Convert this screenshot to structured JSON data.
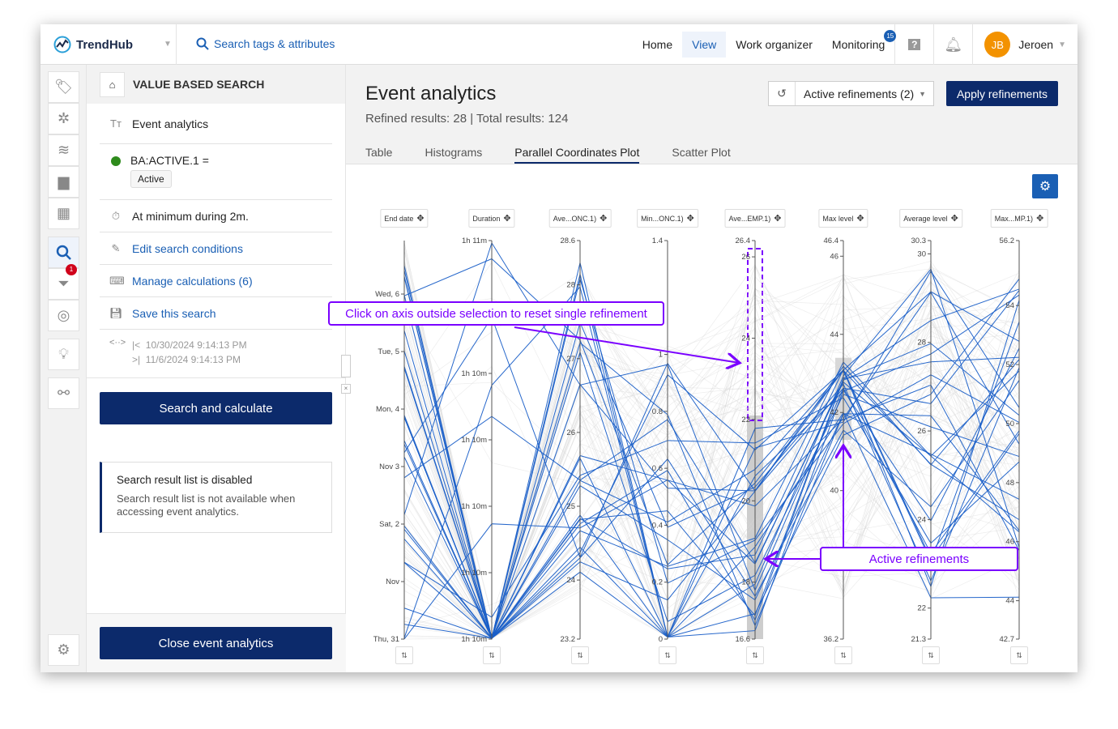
{
  "topbar": {
    "brand": "TrendHub",
    "search_placeholder": "Search tags & attributes",
    "nav": [
      {
        "label": "Home"
      },
      {
        "label": "View"
      },
      {
        "label": "Work organizer"
      },
      {
        "label": "Monitoring",
        "badge": "15"
      }
    ],
    "user_initials": "JB",
    "user_name": "Jeroen"
  },
  "rail": {
    "filter_badge": "1"
  },
  "panel": {
    "title": "VALUE BASED SEARCH",
    "name": "Event analytics",
    "condition": "BA:ACTIVE.1 =",
    "condition_value": "Active",
    "duration": "At minimum during 2m.",
    "edit": "Edit search conditions",
    "calculations": "Manage calculations (6)",
    "save": "Save this search",
    "date_start": "10/30/2024 9:14:13 PM",
    "date_end": "11/6/2024 9:14:13 PM",
    "search_button": "Search and calculate",
    "notice_title": "Search result list is disabled",
    "notice_text": "Search result list is not available when accessing event analytics.",
    "close_button": "Close event analytics"
  },
  "main": {
    "title": "Event analytics",
    "subtitle": "Refined results: 28 | Total results: 124",
    "refinements": "Active refinements (2)",
    "apply": "Apply refinements",
    "tabs": [
      "Table",
      "Histograms",
      "Parallel Coordinates Plot",
      "Scatter Plot"
    ],
    "active_tab": 2
  },
  "callouts": {
    "reset": "Click on axis outside selection to reset single refinement",
    "active": "Active refinements"
  },
  "colors": {
    "highlight": "#1a5fc8",
    "background_lines": "#d8d8d8",
    "brush": "#c8c8c8",
    "annotation": "#7a00ff",
    "primary": "#0c2a6b"
  },
  "chart_data": {
    "type": "parallel-coordinates",
    "total_lines": 124,
    "highlighted_lines": 28,
    "axes": [
      {
        "label": "End date",
        "min": 0,
        "max": 6.93,
        "ticks": [
          {
            "v": 0,
            "t": "Thu, 31"
          },
          {
            "v": 1,
            "t": "Nov"
          },
          {
            "v": 2,
            "t": "Sat, 2"
          },
          {
            "v": 3,
            "t": "Nov 3"
          },
          {
            "v": 4,
            "t": "Mon, 4"
          },
          {
            "v": 5,
            "t": "Tue, 5"
          },
          {
            "v": 6,
            "t": "Wed, 6"
          }
        ]
      },
      {
        "label": "Duration",
        "min": 4200,
        "max": 4260,
        "ticks": [
          {
            "v": 4200,
            "t": "1h 10m"
          },
          {
            "v": 4210,
            "t": "1h 10m"
          },
          {
            "v": 4220,
            "t": "1h 10m"
          },
          {
            "v": 4230,
            "t": "1h 10m"
          },
          {
            "v": 4240,
            "t": "1h 10m"
          },
          {
            "v": 4260,
            "t": "1h 11m"
          }
        ]
      },
      {
        "label": "Ave...ONC.1)",
        "min": 23.2,
        "max": 28.6,
        "ticks": [
          {
            "v": 23.2,
            "t": "23.2"
          },
          {
            "v": 24,
            "t": "24"
          },
          {
            "v": 25,
            "t": "25"
          },
          {
            "v": 26,
            "t": "26"
          },
          {
            "v": 27,
            "t": "27"
          },
          {
            "v": 28,
            "t": "28"
          },
          {
            "v": 28.6,
            "t": "28.6"
          }
        ]
      },
      {
        "label": "Min...ONC.1)",
        "min": 0,
        "max": 1.4,
        "ticks": [
          {
            "v": 0,
            "t": "0"
          },
          {
            "v": 0.2,
            "t": "0.2"
          },
          {
            "v": 0.4,
            "t": "0.4"
          },
          {
            "v": 0.6,
            "t": "0.6"
          },
          {
            "v": 0.8,
            "t": "0.8"
          },
          {
            "v": 1,
            "t": "1"
          },
          {
            "v": 1.4,
            "t": "1.4"
          }
        ]
      },
      {
        "label": "Ave...EMP.1)",
        "min": 16.6,
        "max": 26.4,
        "ticks": [
          {
            "v": 16.6,
            "t": "16.6"
          },
          {
            "v": 18,
            "t": "18"
          },
          {
            "v": 20,
            "t": "20"
          },
          {
            "v": 22,
            "t": "22"
          },
          {
            "v": 24,
            "t": "24"
          },
          {
            "v": 26,
            "t": "26"
          },
          {
            "v": 26.4,
            "t": "26.4"
          }
        ],
        "brush": [
          16.6,
          22.1
        ]
      },
      {
        "label": "Max level",
        "min": 36.2,
        "max": 46.4,
        "ticks": [
          {
            "v": 36.2,
            "t": "36.2"
          },
          {
            "v": 40,
            "t": "40"
          },
          {
            "v": 42,
            "t": "42"
          },
          {
            "v": 44,
            "t": "44"
          },
          {
            "v": 46,
            "t": "46"
          },
          {
            "v": 46.4,
            "t": "46.4"
          }
        ],
        "brush": [
          41.3,
          43.4
        ]
      },
      {
        "label": "Average level",
        "min": 21.3,
        "max": 30.3,
        "ticks": [
          {
            "v": 21.3,
            "t": "21.3"
          },
          {
            "v": 22,
            "t": "22"
          },
          {
            "v": 24,
            "t": "24"
          },
          {
            "v": 26,
            "t": "26"
          },
          {
            "v": 28,
            "t": "28"
          },
          {
            "v": 30,
            "t": "30"
          },
          {
            "v": 30.3,
            "t": "30.3"
          }
        ]
      },
      {
        "label": "Max...MP.1)",
        "min": 42.7,
        "max": 56.2,
        "ticks": [
          {
            "v": 42.7,
            "t": "42.7"
          },
          {
            "v": 44,
            "t": "44"
          },
          {
            "v": 46,
            "t": "46"
          },
          {
            "v": 48,
            "t": "48"
          },
          {
            "v": 50,
            "t": "50"
          },
          {
            "v": 52,
            "t": "52"
          },
          {
            "v": 54,
            "t": "54"
          },
          {
            "v": 56.2,
            "t": "56.2"
          }
        ]
      }
    ]
  }
}
